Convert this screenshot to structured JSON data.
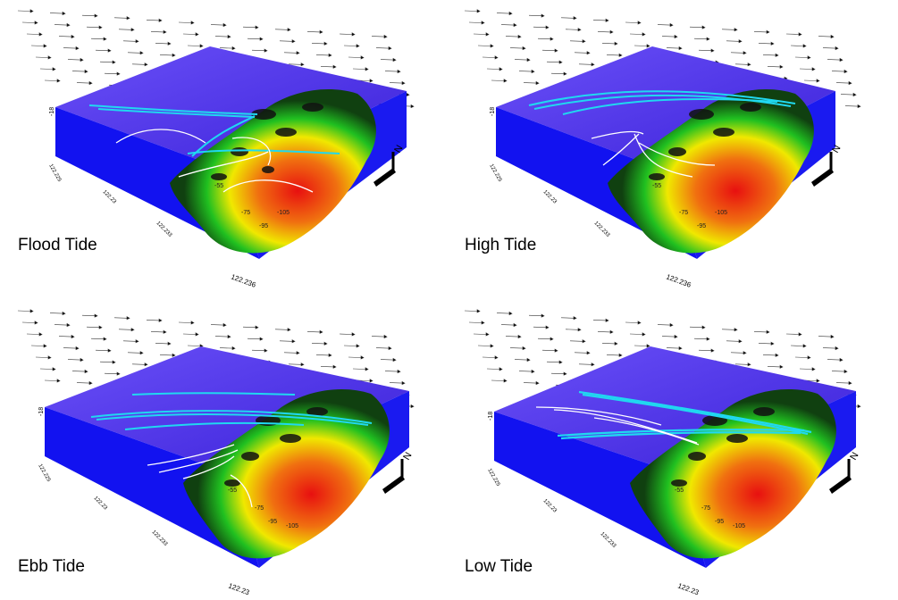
{
  "panels": [
    {
      "label": "Flood Tide",
      "axis": {
        "z_label": "-18",
        "ticks": [
          "122.225",
          "122.23",
          "122.233",
          "122.236"
        ]
      },
      "depth_labels": [
        "-55",
        "-75",
        "-95",
        "-105"
      ],
      "north": "N"
    },
    {
      "label": "High Tide",
      "axis": {
        "z_label": "-18",
        "ticks": [
          "122.225",
          "122.23",
          "122.233",
          "122.236"
        ]
      },
      "depth_labels": [
        "-55",
        "-75",
        "-95",
        "-105"
      ],
      "north": "N"
    },
    {
      "label": "Ebb Tide",
      "axis": {
        "z_label": "-18",
        "ticks": [
          "122.225",
          "122.23",
          "122.233",
          "122.23"
        ]
      },
      "depth_labels": [
        "-55",
        "-75",
        "-95",
        "-105"
      ],
      "north": "N"
    },
    {
      "label": "Low Tide",
      "axis": {
        "z_label": "-18",
        "ticks": [
          "122.225",
          "122.23",
          "122.233",
          "122.23"
        ]
      },
      "depth_labels": [
        "-55",
        "-75",
        "-95",
        "-105"
      ],
      "north": "N"
    }
  ],
  "colors": {
    "water_top": "#5a3ef0",
    "water_side": "#1010f0",
    "deep": "#e81010",
    "mid": "#f0f000",
    "shallow": "#10c010",
    "track_cyan": "#20d8f0",
    "track_white": "#ffffff"
  }
}
